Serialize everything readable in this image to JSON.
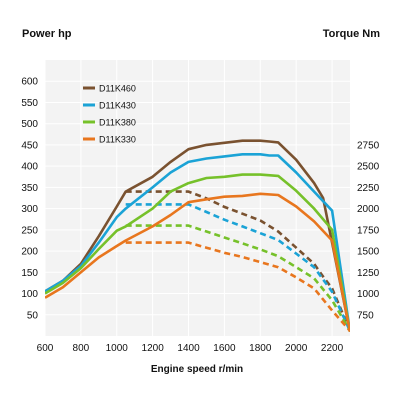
{
  "chart_data": {
    "type": "line",
    "title_left": "Power hp",
    "title_right": "Torque Nm",
    "xlabel": "Engine speed r/min",
    "xlim": [
      600,
      2300
    ],
    "x_ticks": [
      600,
      800,
      1000,
      1200,
      1400,
      1600,
      1800,
      2000,
      2200
    ],
    "ylim_left": [
      0,
      650
    ],
    "y_ticks_left": [
      50,
      100,
      150,
      200,
      250,
      300,
      350,
      400,
      450,
      500,
      550,
      600
    ],
    "y_ticks_right": [
      750,
      1000,
      1250,
      1500,
      1750,
      2000,
      2250,
      2500,
      2750
    ],
    "grid": true,
    "legend_position": "top-left",
    "colors": {
      "D11K460": "#7a5230",
      "D11K430": "#1ba3d6",
      "D11K380": "#76c12a",
      "D11K330": "#e8761e"
    },
    "series": [
      {
        "name": "D11K460",
        "power": {
          "x": [
            600,
            700,
            800,
            900,
            1000,
            1050,
            1200,
            1300,
            1400,
            1500,
            1600,
            1700,
            1800,
            1850,
            1900,
            2000,
            2100,
            2150,
            2300
          ],
          "y": [
            105,
            130,
            170,
            235,
            305,
            340,
            375,
            410,
            440,
            450,
            455,
            460,
            460,
            458,
            456,
            415,
            360,
            325,
            10
          ]
        },
        "torque": {
          "x": [
            1050,
            1200,
            1300,
            1400,
            1500,
            1600,
            1700,
            1800,
            1900,
            2000,
            2100,
            2150,
            2200,
            2300
          ],
          "y": [
            2200,
            2200,
            2200,
            2200,
            2120,
            2020,
            1940,
            1860,
            1730,
            1540,
            1350,
            1200,
            1060,
            560
          ]
        }
      },
      {
        "name": "D11K430",
        "power": {
          "x": [
            600,
            700,
            800,
            900,
            1000,
            1050,
            1200,
            1300,
            1400,
            1500,
            1600,
            1700,
            1800,
            1850,
            1900,
            2000,
            2100,
            2200,
            2300
          ],
          "y": [
            105,
            130,
            165,
            220,
            280,
            300,
            350,
            385,
            410,
            418,
            423,
            428,
            428,
            425,
            425,
            385,
            340,
            295,
            10
          ]
        },
        "torque": {
          "x": [
            1050,
            1200,
            1300,
            1400,
            1500,
            1600,
            1700,
            1800,
            1900,
            2000,
            2100,
            2200,
            2300
          ],
          "y": [
            2050,
            2050,
            2050,
            2050,
            1960,
            1870,
            1790,
            1710,
            1630,
            1470,
            1310,
            1020,
            560
          ]
        }
      },
      {
        "name": "D11K380",
        "power": {
          "x": [
            600,
            700,
            800,
            900,
            1000,
            1050,
            1200,
            1300,
            1400,
            1500,
            1600,
            1700,
            1800,
            1900,
            2000,
            2100,
            2200,
            2300
          ],
          "y": [
            100,
            125,
            160,
            205,
            248,
            258,
            300,
            340,
            360,
            372,
            375,
            380,
            380,
            377,
            342,
            300,
            250,
            10
          ]
        },
        "torque": {
          "x": [
            1050,
            1200,
            1300,
            1400,
            1500,
            1600,
            1700,
            1800,
            1900,
            2000,
            2100,
            2200,
            2300
          ],
          "y": [
            1800,
            1800,
            1800,
            1800,
            1730,
            1660,
            1590,
            1520,
            1440,
            1310,
            1180,
            920,
            560
          ]
        }
      },
      {
        "name": "D11K330",
        "power": {
          "x": [
            600,
            700,
            800,
            900,
            1000,
            1050,
            1200,
            1300,
            1400,
            1500,
            1600,
            1700,
            1800,
            1900,
            2000,
            2100,
            2200,
            2300
          ],
          "y": [
            90,
            115,
            150,
            185,
            212,
            225,
            258,
            285,
            315,
            322,
            328,
            330,
            335,
            332,
            305,
            270,
            225,
            10
          ]
        },
        "torque": {
          "x": [
            1050,
            1200,
            1300,
            1400,
            1500,
            1600,
            1700,
            1800,
            1900,
            2000,
            2100,
            2200,
            2300
          ],
          "y": [
            1600,
            1600,
            1600,
            1600,
            1540,
            1480,
            1430,
            1370,
            1310,
            1190,
            1060,
            800,
            560
          ]
        }
      }
    ]
  }
}
